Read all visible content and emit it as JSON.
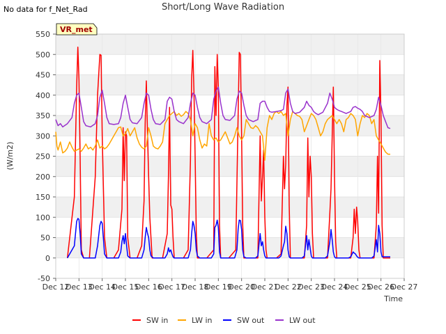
{
  "header": {
    "no_data_text": "No data for f_Net_Rad",
    "title": "Short/Long Wave Radiation",
    "badge": "VR_met"
  },
  "colors": {
    "sw_in": "#ff0000",
    "lw_in": "#ffa500",
    "sw_out": "#0000ff",
    "lw_out": "#9932cc",
    "band": "#f0f0f0"
  },
  "chart_data": {
    "type": "line",
    "title": "Short/Long Wave Radiation",
    "xlabel": "Time",
    "ylabel": "(W/m2)",
    "xlim": [
      12,
      27
    ],
    "ylim": [
      -50,
      550
    ],
    "x_ticks": [
      12,
      13,
      14,
      15,
      16,
      17,
      18,
      19,
      20,
      21,
      22,
      23,
      24,
      25,
      26,
      27
    ],
    "x_tick_labels": [
      "Dec 12",
      "Dec 13",
      "Dec 14",
      "Dec 15",
      "Dec 16",
      "Dec 17",
      "Dec 18",
      "Dec 19",
      "Dec 20",
      "Dec 21",
      "Dec 22",
      "Dec 23",
      "Dec 24",
      "Dec 25",
      "Dec 26",
      "Dec 27"
    ],
    "y_ticks": [
      -50,
      0,
      50,
      100,
      150,
      200,
      250,
      300,
      350,
      400,
      450,
      500,
      550
    ],
    "grid": true,
    "legend_position": "bottom",
    "x_unit": "day of December",
    "series": [
      {
        "name": "SW in",
        "key": "sw_in",
        "x": [
          12.5,
          12.8,
          12.9,
          12.95,
          13.0,
          13.05,
          13.1,
          13.2,
          13.45,
          13.7,
          13.8,
          13.9,
          13.95,
          14.0,
          14.1,
          14.2,
          14.5,
          14.7,
          14.85,
          14.9,
          14.95,
          15.0,
          15.05,
          15.1,
          15.2,
          15.5,
          15.7,
          15.8,
          15.85,
          15.9,
          15.95,
          16.0,
          16.05,
          16.15,
          16.3,
          16.6,
          16.8,
          16.85,
          16.9,
          16.95,
          17.0,
          17.05,
          17.1,
          17.2,
          17.5,
          17.7,
          17.8,
          17.85,
          17.9,
          17.95,
          18.0,
          18.05,
          18.1,
          18.2,
          18.5,
          18.8,
          18.85,
          18.9,
          18.95,
          19.0,
          19.05,
          19.1,
          19.2,
          19.45,
          19.75,
          19.85,
          19.9,
          19.95,
          20.0,
          20.05,
          20.1,
          20.2,
          20.5,
          20.7,
          20.8,
          20.85,
          20.9,
          20.95,
          21.0,
          21.05,
          21.1,
          21.2,
          21.5,
          21.7,
          21.8,
          21.85,
          21.9,
          21.95,
          22.0,
          22.05,
          22.1,
          22.2,
          22.5,
          22.7,
          22.8,
          22.85,
          22.9,
          22.95,
          23.0,
          23.05,
          23.1,
          23.2,
          23.5,
          23.7,
          23.8,
          23.85,
          23.9,
          23.95,
          24.0,
          24.05,
          24.1,
          24.2,
          24.5,
          24.7,
          24.8,
          24.85,
          24.9,
          24.95,
          25.0,
          25.05,
          25.1,
          25.2,
          25.5,
          25.7,
          25.8,
          25.85,
          25.9,
          25.95,
          26.0,
          26.05,
          26.1,
          26.2,
          26.4
        ],
        "y": [
          0,
          150,
          420,
          518,
          440,
          250,
          20,
          0,
          0,
          200,
          400,
          500,
          498,
          300,
          50,
          0,
          0,
          20,
          120,
          320,
          190,
          310,
          300,
          50,
          0,
          0,
          30,
          140,
          330,
          435,
          300,
          200,
          100,
          0,
          0,
          0,
          60,
          200,
          370,
          130,
          120,
          50,
          0,
          0,
          0,
          20,
          240,
          440,
          510,
          410,
          250,
          60,
          0,
          0,
          0,
          20,
          470,
          350,
          500,
          420,
          80,
          0,
          0,
          0,
          20,
          350,
          505,
          500,
          300,
          80,
          0,
          0,
          0,
          0,
          300,
          140,
          200,
          265,
          100,
          20,
          0,
          0,
          0,
          10,
          250,
          170,
          230,
          375,
          420,
          130,
          0,
          0,
          0,
          0,
          80,
          295,
          150,
          250,
          200,
          60,
          0,
          0,
          0,
          0,
          110,
          170,
          300,
          420,
          200,
          40,
          0,
          0,
          0,
          0,
          50,
          120,
          60,
          125,
          90,
          20,
          0,
          0,
          0,
          0,
          80,
          250,
          110,
          485,
          350,
          80,
          0,
          0,
          0
        ]
      },
      {
        "name": "LW in",
        "key": "lw_in",
        "x": [
          12.0,
          12.05,
          12.1,
          12.2,
          12.3,
          12.4,
          12.5,
          12.6,
          12.7,
          12.8,
          12.9,
          13.0,
          13.1,
          13.2,
          13.3,
          13.4,
          13.5,
          13.6,
          13.7,
          13.8,
          13.9,
          14.0,
          14.1,
          14.2,
          14.3,
          14.4,
          14.5,
          14.6,
          14.7,
          14.8,
          14.9,
          15.0,
          15.1,
          15.2,
          15.3,
          15.4,
          15.5,
          15.6,
          15.7,
          15.8,
          15.9,
          16.0,
          16.1,
          16.2,
          16.3,
          16.4,
          16.5,
          16.6,
          16.7,
          16.8,
          16.9,
          17.0,
          17.1,
          17.2,
          17.3,
          17.4,
          17.5,
          17.6,
          17.7,
          17.8,
          17.9,
          18.0,
          18.1,
          18.2,
          18.3,
          18.4,
          18.5,
          18.6,
          18.7,
          18.8,
          18.9,
          19.0,
          19.1,
          19.2,
          19.3,
          19.4,
          19.5,
          19.6,
          19.7,
          19.8,
          19.9,
          20.0,
          20.1,
          20.2,
          20.3,
          20.4,
          20.5,
          20.6,
          20.7,
          20.8,
          20.9,
          21.0,
          21.1,
          21.2,
          21.3,
          21.4,
          21.5,
          21.6,
          21.7,
          21.8,
          21.9,
          22.0,
          22.1,
          22.2,
          22.3,
          22.4,
          22.5,
          22.6,
          22.7,
          22.8,
          22.9,
          23.0,
          23.1,
          23.2,
          23.3,
          23.4,
          23.5,
          23.6,
          23.7,
          23.8,
          23.9,
          24.0,
          24.1,
          24.2,
          24.3,
          24.4,
          24.5,
          24.6,
          24.7,
          24.8,
          24.9,
          25.0,
          25.1,
          25.2,
          25.3,
          25.4,
          25.5,
          25.6,
          25.7,
          25.8,
          25.9,
          26.0,
          26.1,
          26.2,
          26.3,
          26.4
        ],
        "y": [
          310,
          275,
          265,
          285,
          258,
          262,
          270,
          285,
          272,
          262,
          265,
          268,
          262,
          270,
          280,
          268,
          272,
          265,
          275,
          290,
          270,
          275,
          268,
          272,
          280,
          290,
          300,
          310,
          320,
          322,
          300,
          305,
          318,
          300,
          310,
          320,
          295,
          280,
          272,
          268,
          275,
          320,
          300,
          275,
          270,
          268,
          275,
          285,
          330,
          340,
          350,
          355,
          360,
          350,
          355,
          348,
          352,
          360,
          355,
          340,
          300,
          330,
          320,
          290,
          270,
          280,
          275,
          330,
          300,
          290,
          295,
          285,
          290,
          300,
          310,
          295,
          280,
          285,
          300,
          320,
          300,
          290,
          300,
          340,
          330,
          320,
          318,
          325,
          320,
          310,
          300,
          240,
          320,
          350,
          340,
          355,
          360,
          355,
          360,
          350,
          355,
          300,
          340,
          360,
          355,
          350,
          348,
          340,
          310,
          325,
          340,
          355,
          350,
          340,
          320,
          300,
          310,
          330,
          340,
          345,
          350,
          340,
          330,
          340,
          330,
          310,
          340,
          345,
          355,
          350,
          340,
          300,
          330,
          350,
          345,
          355,
          350,
          330,
          340,
          300,
          290,
          280,
          270,
          260,
          255,
          255
        ]
      },
      {
        "name": "SW out",
        "key": "sw_out",
        "x": [
          12.5,
          12.8,
          12.9,
          12.95,
          13.0,
          13.05,
          13.1,
          13.2,
          13.7,
          13.8,
          13.9,
          13.95,
          14.0,
          14.05,
          14.1,
          14.2,
          14.7,
          14.8,
          14.85,
          14.9,
          14.95,
          15.0,
          15.05,
          15.1,
          15.2,
          15.7,
          15.8,
          15.85,
          15.9,
          15.95,
          16.0,
          16.05,
          16.1,
          16.2,
          16.7,
          16.8,
          16.85,
          16.9,
          16.95,
          17.0,
          17.05,
          17.1,
          17.2,
          17.7,
          17.8,
          17.85,
          17.9,
          17.95,
          18.0,
          18.05,
          18.1,
          18.2,
          18.7,
          18.8,
          18.85,
          18.9,
          18.95,
          19.0,
          19.05,
          19.1,
          19.2,
          19.7,
          19.8,
          19.85,
          19.9,
          19.95,
          20.0,
          20.05,
          20.1,
          20.2,
          20.6,
          20.7,
          20.8,
          20.85,
          20.9,
          20.95,
          21.0,
          21.05,
          21.1,
          21.2,
          21.6,
          21.7,
          21.8,
          21.85,
          21.9,
          21.95,
          22.0,
          22.05,
          22.1,
          22.2,
          22.6,
          22.7,
          22.8,
          22.85,
          22.9,
          22.95,
          23.0,
          23.05,
          23.1,
          23.2,
          23.6,
          23.7,
          23.8,
          23.85,
          23.9,
          23.95,
          24.0,
          24.05,
          24.1,
          24.2,
          24.6,
          24.7,
          24.8,
          24.85,
          24.9,
          24.95,
          25.0,
          25.05,
          25.1,
          25.2,
          25.6,
          25.7,
          25.8,
          25.85,
          25.9,
          25.95,
          26.0,
          26.05,
          26.1,
          26.2,
          26.4
        ],
        "y": [
          0,
          30,
          90,
          97,
          95,
          60,
          10,
          0,
          0,
          30,
          80,
          90,
          85,
          50,
          10,
          0,
          0,
          15,
          40,
          55,
          35,
          60,
          30,
          5,
          0,
          0,
          20,
          50,
          75,
          60,
          50,
          20,
          5,
          0,
          0,
          10,
          25,
          15,
          20,
          10,
          3,
          0,
          0,
          0,
          20,
          60,
          90,
          80,
          60,
          20,
          5,
          0,
          0,
          10,
          75,
          80,
          93,
          75,
          15,
          0,
          0,
          0,
          20,
          70,
          93,
          92,
          70,
          20,
          3,
          0,
          0,
          5,
          60,
          30,
          40,
          20,
          5,
          0,
          0,
          0,
          0,
          5,
          30,
          40,
          78,
          60,
          20,
          3,
          0,
          0,
          0,
          5,
          55,
          20,
          45,
          25,
          5,
          0,
          0,
          0,
          0,
          5,
          40,
          70,
          45,
          15,
          3,
          0,
          0,
          0,
          0,
          3,
          15,
          12,
          10,
          5,
          2,
          0,
          0,
          0,
          0,
          5,
          45,
          15,
          80,
          60,
          15,
          3,
          3,
          3,
          3
        ]
      },
      {
        "name": "LW out",
        "key": "lw_out",
        "x": [
          12.0,
          12.1,
          12.2,
          12.3,
          12.5,
          12.7,
          12.8,
          12.9,
          13.0,
          13.1,
          13.2,
          13.3,
          13.5,
          13.7,
          13.8,
          13.9,
          14.0,
          14.1,
          14.2,
          14.3,
          14.5,
          14.7,
          14.8,
          14.9,
          15.0,
          15.1,
          15.2,
          15.3,
          15.5,
          15.7,
          15.8,
          15.9,
          16.0,
          16.1,
          16.2,
          16.3,
          16.5,
          16.7,
          16.8,
          16.9,
          17.0,
          17.1,
          17.2,
          17.3,
          17.5,
          17.7,
          17.8,
          17.9,
          18.0,
          18.1,
          18.2,
          18.3,
          18.5,
          18.7,
          18.8,
          18.9,
          19.0,
          19.1,
          19.2,
          19.3,
          19.5,
          19.7,
          19.8,
          19.9,
          20.0,
          20.1,
          20.2,
          20.3,
          20.5,
          20.7,
          20.8,
          20.9,
          21.0,
          21.1,
          21.2,
          21.3,
          21.5,
          21.7,
          21.8,
          21.9,
          22.0,
          22.1,
          22.2,
          22.3,
          22.5,
          22.7,
          22.8,
          22.9,
          23.0,
          23.1,
          23.2,
          23.3,
          23.5,
          23.7,
          23.8,
          23.9,
          24.0,
          24.1,
          24.2,
          24.3,
          24.5,
          24.7,
          24.8,
          24.9,
          25.0,
          25.1,
          25.2,
          25.3,
          25.5,
          25.7,
          25.8,
          25.9,
          26.0,
          26.1,
          26.2,
          26.3,
          26.4
        ],
        "y": [
          340,
          325,
          330,
          322,
          330,
          345,
          380,
          400,
          405,
          370,
          335,
          325,
          322,
          330,
          350,
          395,
          412,
          380,
          345,
          330,
          328,
          330,
          345,
          380,
          400,
          370,
          340,
          332,
          330,
          345,
          380,
          405,
          400,
          365,
          340,
          330,
          328,
          340,
          385,
          395,
          390,
          360,
          340,
          335,
          330,
          345,
          380,
          405,
          400,
          370,
          345,
          335,
          330,
          340,
          390,
          410,
          420,
          380,
          350,
          340,
          338,
          350,
          390,
          410,
          405,
          375,
          350,
          340,
          335,
          340,
          380,
          385,
          385,
          370,
          360,
          358,
          360,
          362,
          365,
          405,
          415,
          380,
          360,
          355,
          358,
          370,
          385,
          375,
          370,
          360,
          355,
          352,
          358,
          380,
          405,
          390,
          370,
          365,
          362,
          360,
          355,
          360,
          370,
          372,
          368,
          365,
          360,
          350,
          345,
          350,
          365,
          395,
          375,
          350,
          335,
          320,
          318
        ]
      }
    ]
  }
}
